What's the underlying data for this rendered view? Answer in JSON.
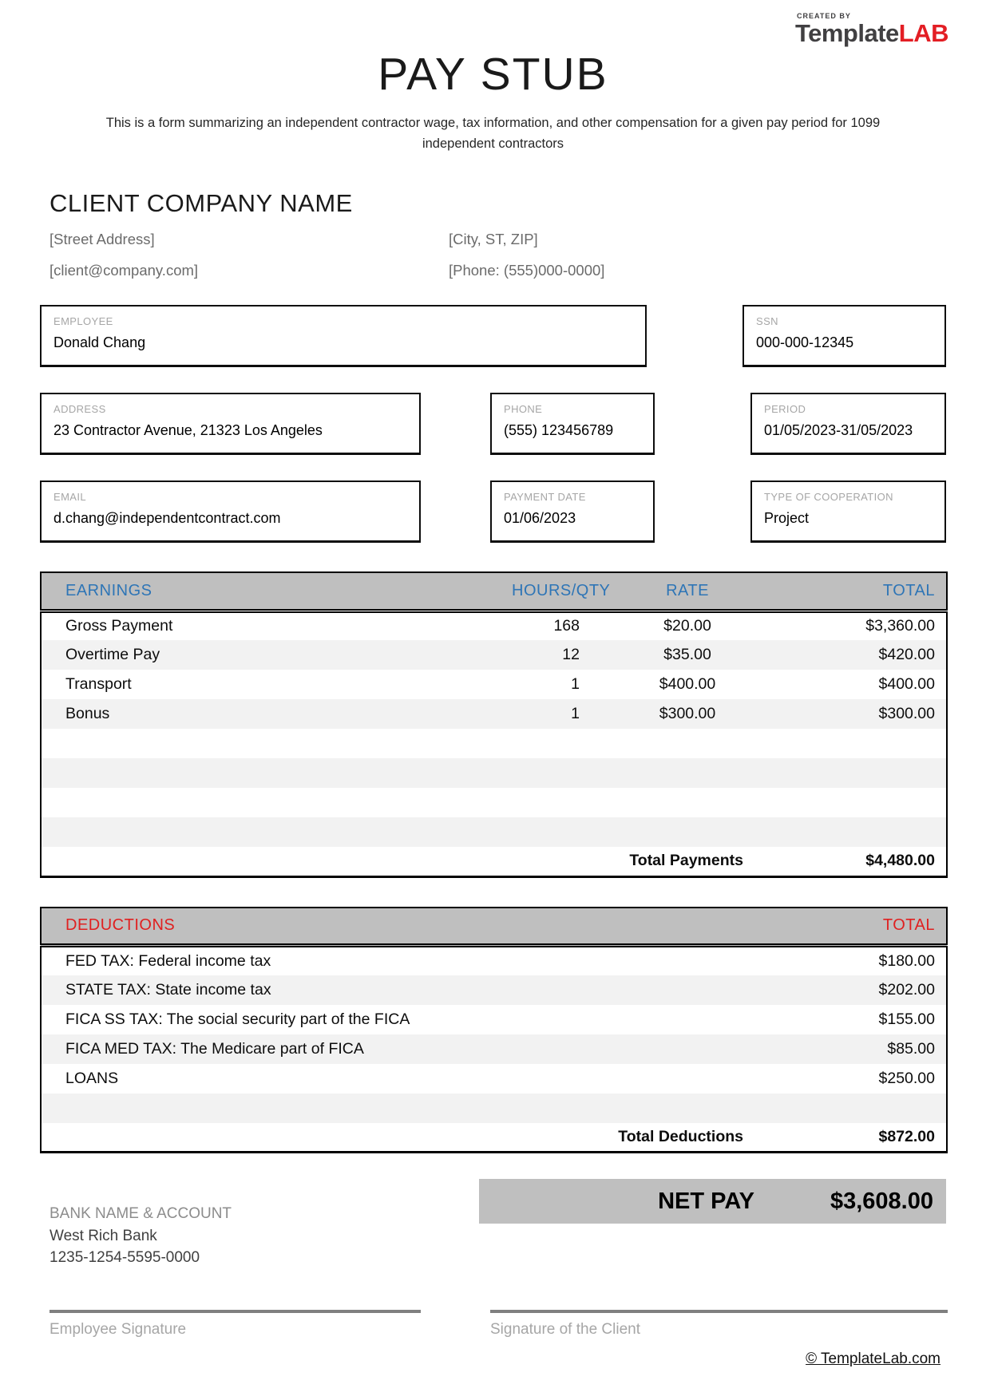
{
  "logo": {
    "created_by": "CREATED BY",
    "brand_template": "Template",
    "brand_lab": "LAB"
  },
  "header": {
    "title": "PAY STUB",
    "subtitle": "This is a form summarizing an independent contractor wage, tax information, and other compensation for a given pay period for 1099 independent contractors"
  },
  "client": {
    "company_name": "CLIENT COMPANY NAME",
    "street_address": "[Street Address]",
    "city_st_zip": "[City, ST, ZIP]",
    "email": "[client@company.com]",
    "phone": "[Phone: (555)000-0000]"
  },
  "info_boxes": {
    "employee": {
      "label": "EMPLOYEE",
      "value": "Donald Chang"
    },
    "ssn": {
      "label": "SSN",
      "value": "000-000-12345"
    },
    "address": {
      "label": "ADDRESS",
      "value": "23 Contractor Avenue, 21323 Los Angeles"
    },
    "phone": {
      "label": "PHONE",
      "value": "(555) 123456789"
    },
    "period": {
      "label": "PERIOD",
      "value": "01/05/2023-31/05/2023"
    },
    "email": {
      "label": "EMAIL",
      "value": "d.chang@independentcontract.com"
    },
    "payment_date": {
      "label": "PAYMENT DATE",
      "value": "01/06/2023"
    },
    "type_of_cooperation": {
      "label": "TYPE OF COOPERATION",
      "value": "Project"
    }
  },
  "earnings": {
    "headers": {
      "name": "EARNINGS",
      "hours": "HOURS/QTY",
      "rate": "RATE",
      "total": "TOTAL"
    },
    "rows": [
      {
        "name": "Gross Payment",
        "hours": "168",
        "rate": "$20.00",
        "total": "$3,360.00"
      },
      {
        "name": "Overtime Pay",
        "hours": "12",
        "rate": "$35.00",
        "total": "$420.00"
      },
      {
        "name": "Transport",
        "hours": "1",
        "rate": "$400.00",
        "total": "$400.00"
      },
      {
        "name": "Bonus",
        "hours": "1",
        "rate": "$300.00",
        "total": "$300.00"
      }
    ],
    "empty_row_count": 4,
    "total_label": "Total Payments",
    "total_value": "$4,480.00"
  },
  "deductions": {
    "headers": {
      "name": "DEDUCTIONS",
      "total": "TOTAL"
    },
    "rows": [
      {
        "name": "FED TAX: Federal income tax",
        "total": "$180.00"
      },
      {
        "name": "STATE TAX: State income tax",
        "total": "$202.00"
      },
      {
        "name": "FICA SS TAX: The social security part of the FICA",
        "total": "$155.00"
      },
      {
        "name": "FICA MED TAX: The Medicare part of FICA",
        "total": "$85.00"
      },
      {
        "name": "LOANS",
        "total": "$250.00"
      }
    ],
    "empty_row_count": 1,
    "total_label": "Total Deductions",
    "total_value": "$872.00"
  },
  "net_pay": {
    "label": "NET PAY",
    "value": "$3,608.00"
  },
  "bank": {
    "label": "BANK NAME & ACCOUNT",
    "name": "West Rich Bank",
    "account": "1235-1254-5595-0000"
  },
  "signatures": {
    "employee": "Employee Signature",
    "client": "Signature of the Client"
  },
  "footer": {
    "copyright": "© TemplateLab.com"
  },
  "colors": {
    "accent_blue": "#2E75B6",
    "accent_red": "#E02020",
    "header_gray": "#BFBFBF",
    "stripe_gray": "#F2F2F2",
    "label_gray": "#A6A6A6",
    "logo_dark": "#414042",
    "logo_red": "#E31E24"
  }
}
